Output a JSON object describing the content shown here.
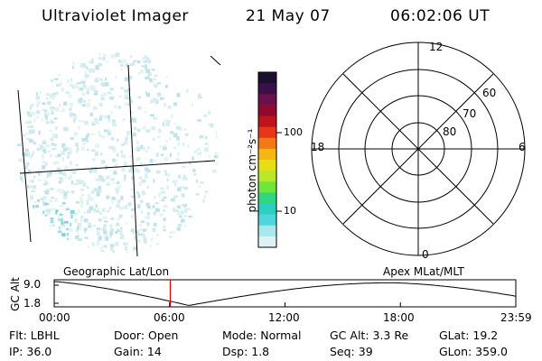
{
  "header": {
    "instrument": "Ultraviolet Imager",
    "date": "21 May 07",
    "time": "06:02:06 UT"
  },
  "colorbar": {
    "unit_label": "photon cm⁻²s⁻¹",
    "ticks": [
      "100",
      "10"
    ],
    "colors": [
      "#1a0f2e",
      "#3a1048",
      "#6b0f4d",
      "#8f0a2e",
      "#c0141c",
      "#e8361a",
      "#f27a16",
      "#f5b812",
      "#e8de14",
      "#b8e828",
      "#6fe43a",
      "#2fd880",
      "#2ccfc0",
      "#4fd6dc",
      "#a8e8ec",
      "#dcf2f4"
    ]
  },
  "polar": {
    "mlt_labels": {
      "top": "12",
      "left": "18",
      "right": "6",
      "bottom": "0"
    },
    "lat_labels": [
      "60",
      "70",
      "80"
    ]
  },
  "orbit": {
    "ylabel": "GC Alt",
    "ytick_top": "9.0",
    "ytick_bottom": "1.8",
    "left_caption": "Geographic Lat/Lon",
    "right_caption": "Apex MLat/MLT",
    "xticks": [
      "00:00",
      "06:00",
      "12:00",
      "18:00",
      "23:59"
    ],
    "current_time_fraction": 0.2514
  },
  "info": {
    "flt": "Flt: LBHL",
    "ip": "IP: 36.0",
    "door": "Door: Open",
    "gain": "Gain: 14",
    "mode": "Mode: Normal",
    "dsp": "Dsp:    1.8",
    "gcalt": "GC Alt: 3.3 Re",
    "seq": "Seq: 39",
    "glat": "GLat:  19.2",
    "glon": "GLon: 359.0"
  }
}
